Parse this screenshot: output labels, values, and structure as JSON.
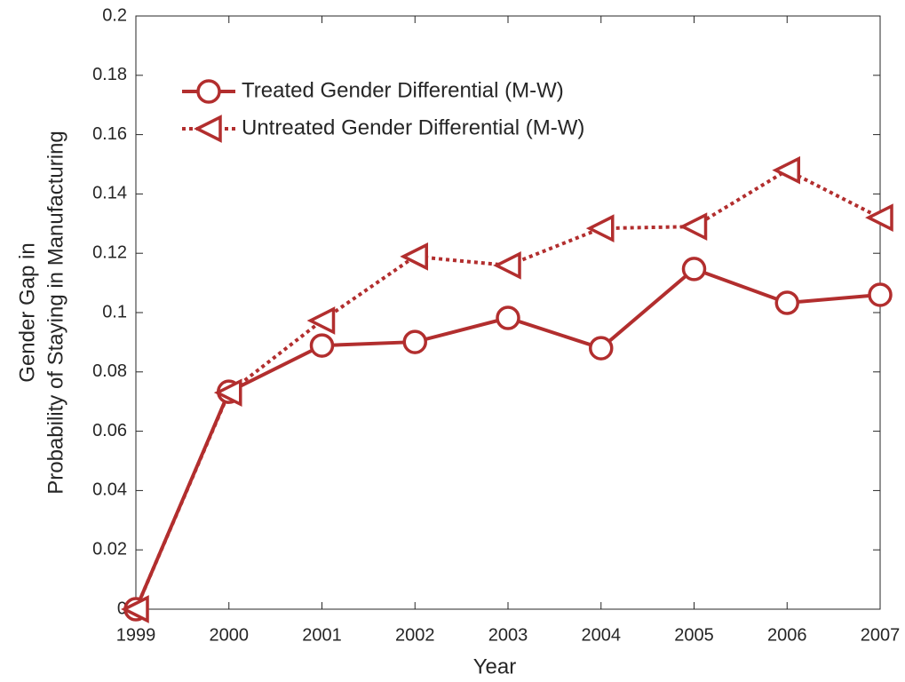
{
  "chart_data": {
    "type": "line",
    "xlabel": "Year",
    "ylabel": [
      "Gender Gap in",
      "Probability of Staying in Manufacturing"
    ],
    "x": [
      1999,
      2000,
      2001,
      2002,
      2003,
      2004,
      2005,
      2006,
      2007
    ],
    "series": [
      {
        "name": "Treated Gender Differential (M-W)",
        "color": "#b22e2e",
        "line_style": "solid",
        "marker": "circle",
        "values": [
          0,
          0.0733,
          0.0889,
          0.0901,
          0.0982,
          0.088,
          0.1147,
          0.1033,
          0.106
        ]
      },
      {
        "name": "Untreated Gender Differential (M-W)",
        "color": "#b22e2e",
        "line_style": "dotted",
        "marker": "triangle-left",
        "values": [
          0,
          0.073,
          0.0973,
          0.1189,
          0.1159,
          0.1284,
          0.129,
          0.148,
          0.132
        ]
      }
    ],
    "xlim": [
      1999,
      2007
    ],
    "xticks": [
      1999,
      2000,
      2001,
      2002,
      2003,
      2004,
      2005,
      2006,
      2007
    ],
    "ylim": [
      0,
      0.2
    ],
    "yticks": [
      0,
      0.02,
      0.04,
      0.06,
      0.08,
      0.1,
      0.12,
      0.14,
      0.16,
      0.18,
      0.2
    ],
    "grid": false,
    "legend": "northwest"
  }
}
